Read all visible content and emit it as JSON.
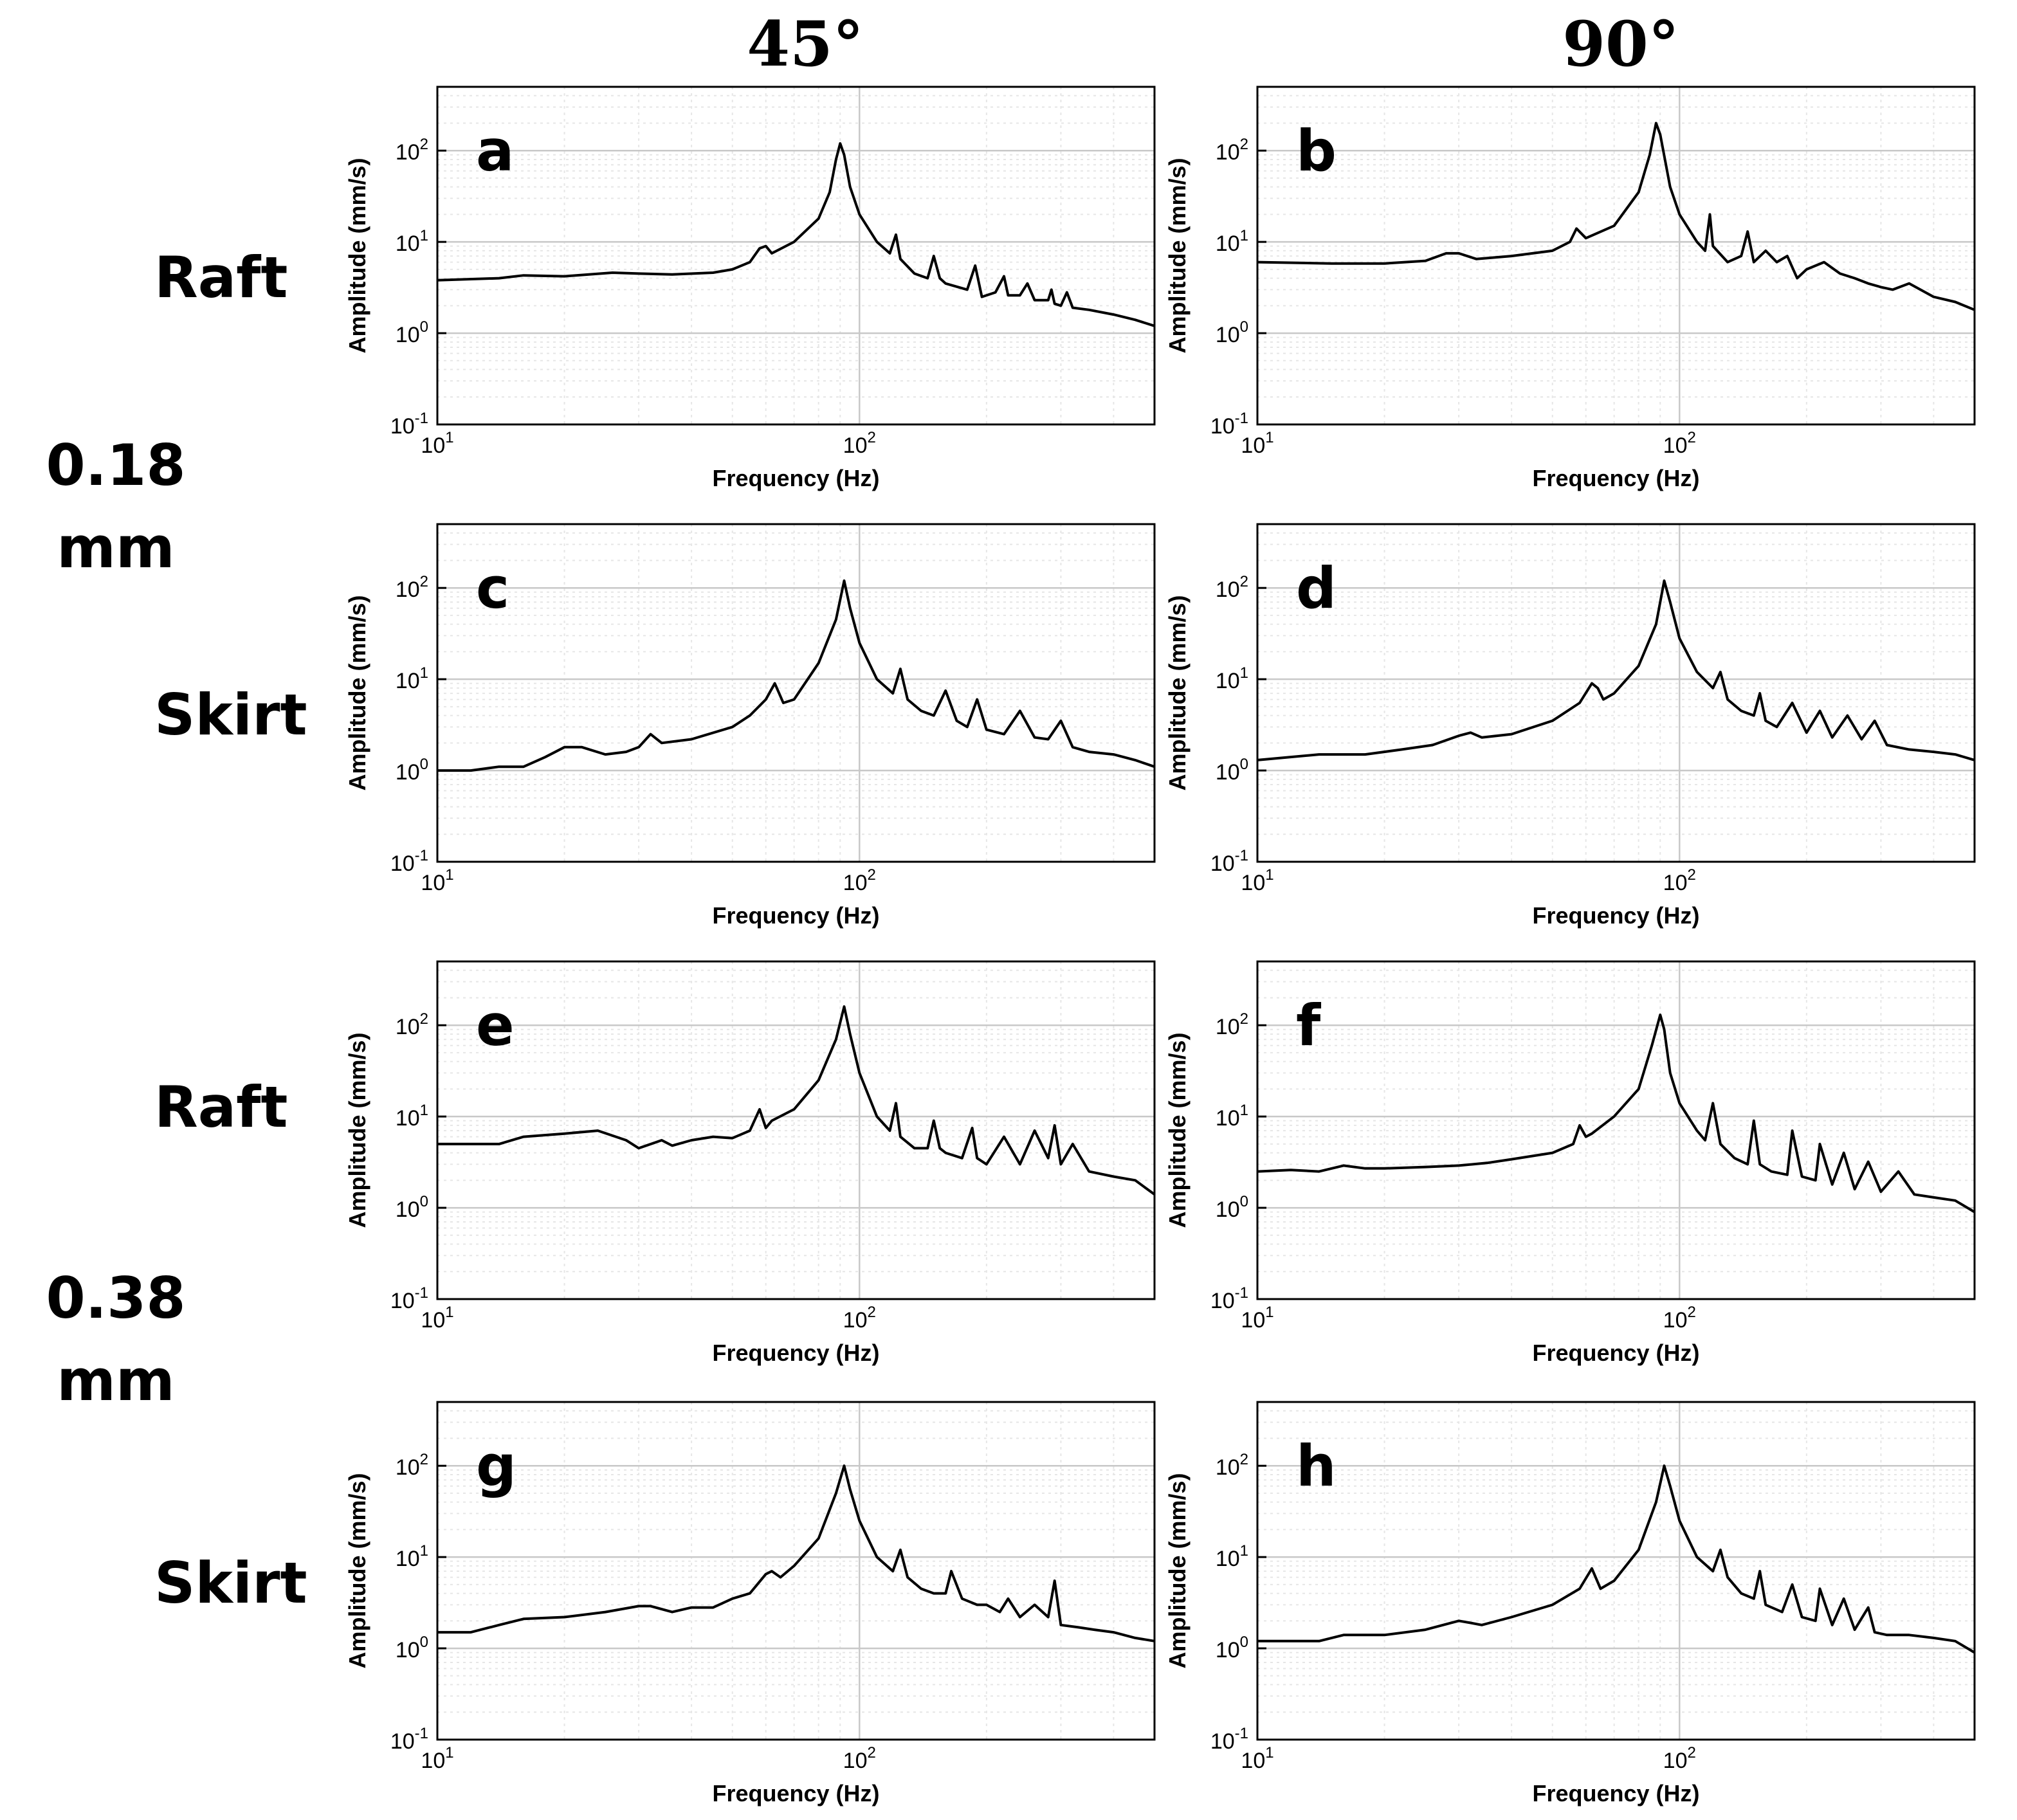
{
  "columns": [
    "45°",
    "90°"
  ],
  "rows": [
    "Raft",
    "Skirt",
    "Raft",
    "Skirt"
  ],
  "groups": [
    {
      "line1": "0.18",
      "line2": "mm"
    },
    {
      "line1": "0.38",
      "line2": "mm"
    }
  ],
  "colors": {
    "line": "#000000",
    "grid_major": "#c8c8c8",
    "grid_minor": "#e6e6e6",
    "frame": "#000000"
  },
  "chart_data": [
    {
      "panel": "a",
      "type": "line",
      "xlabel": "Frequency (Hz)",
      "ylabel": "Amplitude (mm/s)",
      "xscale": "log",
      "yscale": "log",
      "xlim": [
        10,
        500
      ],
      "ylim": [
        0.1,
        500
      ],
      "grid": true,
      "x_ticks": [
        "10^1",
        "10^2"
      ],
      "y_ticks": [
        "10^-1",
        "10^0",
        "10^1",
        "10^2"
      ],
      "x": [
        10,
        14,
        16,
        20,
        26,
        30,
        36,
        45,
        50,
        55,
        58,
        60,
        62,
        70,
        80,
        85,
        88,
        90,
        92,
        95,
        100,
        110,
        118,
        122,
        125,
        135,
        145,
        150,
        155,
        160,
        180,
        188,
        195,
        210,
        220,
        225,
        240,
        250,
        260,
        280,
        285,
        290,
        300,
        310,
        320,
        350,
        400,
        450,
        500
      ],
      "y": [
        3.8,
        4.0,
        4.3,
        4.2,
        4.6,
        4.5,
        4.4,
        4.6,
        5.0,
        6.0,
        8.5,
        9.0,
        7.5,
        10,
        18,
        35,
        80,
        120,
        90,
        40,
        20,
        10,
        7.5,
        12,
        6.5,
        4.5,
        4.0,
        7.0,
        4.0,
        3.5,
        3.0,
        5.5,
        2.5,
        2.8,
        4.2,
        2.6,
        2.6,
        3.5,
        2.3,
        2.3,
        3.0,
        2.1,
        2.0,
        2.8,
        1.9,
        1.8,
        1.6,
        1.4,
        1.2
      ]
    },
    {
      "panel": "b",
      "type": "line",
      "xlabel": "Frequency (Hz)",
      "ylabel": "Amplitude (mm/s)",
      "xscale": "log",
      "yscale": "log",
      "xlim": [
        10,
        500
      ],
      "ylim": [
        0.1,
        500
      ],
      "grid": true,
      "x_ticks": [
        "10^1",
        "10^2"
      ],
      "y_ticks": [
        "10^-1",
        "10^0",
        "10^1",
        "10^2"
      ],
      "x": [
        10,
        15,
        20,
        25,
        28,
        30,
        33,
        40,
        50,
        55,
        57,
        60,
        70,
        80,
        85,
        88,
        90,
        95,
        100,
        110,
        115,
        118,
        120,
        130,
        140,
        145,
        150,
        160,
        170,
        180,
        190,
        200,
        220,
        240,
        260,
        280,
        300,
        320,
        350,
        400,
        450,
        500
      ],
      "y": [
        6,
        5.8,
        5.8,
        6.2,
        7.5,
        7.5,
        6.5,
        7,
        8,
        10,
        14,
        11,
        15,
        35,
        90,
        200,
        150,
        40,
        20,
        10,
        8,
        20,
        9,
        6,
        7,
        13,
        6,
        8,
        6,
        7,
        4,
        5,
        6,
        4.5,
        4,
        3.5,
        3.2,
        3,
        3.5,
        2.5,
        2.2,
        1.8
      ]
    },
    {
      "panel": "c",
      "type": "line",
      "xlabel": "Frequency (Hz)",
      "ylabel": "Amplitude (mm/s)",
      "xscale": "log",
      "yscale": "log",
      "xlim": [
        10,
        500
      ],
      "ylim": [
        0.1,
        500
      ],
      "grid": true,
      "x_ticks": [
        "10^1",
        "10^2"
      ],
      "y_ticks": [
        "10^-1",
        "10^0",
        "10^1",
        "10^2"
      ],
      "x": [
        10,
        12,
        14,
        16,
        18,
        20,
        22,
        25,
        28,
        30,
        32,
        34,
        40,
        50,
        55,
        60,
        63,
        66,
        70,
        80,
        88,
        92,
        95,
        100,
        110,
        120,
        125,
        130,
        140,
        150,
        160,
        170,
        180,
        190,
        200,
        220,
        240,
        260,
        280,
        300,
        320,
        350,
        400,
        450,
        500
      ],
      "y": [
        1.0,
        1.0,
        1.1,
        1.1,
        1.4,
        1.8,
        1.8,
        1.5,
        1.6,
        1.8,
        2.5,
        2.0,
        2.2,
        3.0,
        4.0,
        6.0,
        9.0,
        5.5,
        6.0,
        15,
        45,
        120,
        60,
        25,
        10,
        7,
        13,
        6,
        4.5,
        4.0,
        7.5,
        3.5,
        3.0,
        6.0,
        2.8,
        2.5,
        4.5,
        2.3,
        2.2,
        3.5,
        1.8,
        1.6,
        1.5,
        1.3,
        1.1
      ]
    },
    {
      "panel": "d",
      "type": "line",
      "xlabel": "Frequency (Hz)",
      "ylabel": "Amplitude (mm/s)",
      "xscale": "log",
      "yscale": "log",
      "xlim": [
        10,
        500
      ],
      "ylim": [
        0.1,
        500
      ],
      "grid": true,
      "x_ticks": [
        "10^1",
        "10^2"
      ],
      "y_ticks": [
        "10^-1",
        "10^0",
        "10^1",
        "10^2"
      ],
      "x": [
        10,
        14,
        18,
        22,
        26,
        30,
        32,
        34,
        40,
        50,
        58,
        62,
        64,
        66,
        70,
        80,
        88,
        92,
        95,
        100,
        110,
        120,
        125,
        130,
        140,
        150,
        155,
        160,
        170,
        185,
        200,
        215,
        230,
        250,
        270,
        290,
        310,
        350,
        400,
        450,
        500
      ],
      "y": [
        1.3,
        1.5,
        1.5,
        1.7,
        1.9,
        2.4,
        2.6,
        2.3,
        2.5,
        3.5,
        5.5,
        9.0,
        8.0,
        6.0,
        7.0,
        14,
        40,
        120,
        70,
        28,
        12,
        8,
        12,
        6,
        4.5,
        4.0,
        7.0,
        3.5,
        3.0,
        5.5,
        2.6,
        4.5,
        2.3,
        4.0,
        2.2,
        3.5,
        1.9,
        1.7,
        1.6,
        1.5,
        1.3
      ]
    },
    {
      "panel": "e",
      "type": "line",
      "xlabel": "Frequency (Hz)",
      "ylabel": "Amplitude (mm/s)",
      "xscale": "log",
      "yscale": "log",
      "xlim": [
        10,
        500
      ],
      "ylim": [
        0.1,
        500
      ],
      "grid": true,
      "x_ticks": [
        "10^1",
        "10^2"
      ],
      "y_ticks": [
        "10^-1",
        "10^0",
        "10^1",
        "10^2"
      ],
      "x": [
        10,
        14,
        16,
        20,
        24,
        28,
        30,
        34,
        36,
        40,
        45,
        50,
        55,
        58,
        60,
        62,
        70,
        80,
        88,
        92,
        95,
        100,
        110,
        118,
        122,
        125,
        135,
        145,
        150,
        155,
        160,
        175,
        185,
        190,
        200,
        220,
        240,
        260,
        280,
        290,
        300,
        320,
        350,
        400,
        450,
        500
      ],
      "y": [
        5.0,
        5.0,
        6.0,
        6.5,
        7.0,
        5.5,
        4.5,
        5.5,
        4.8,
        5.5,
        6.0,
        5.8,
        7.0,
        12,
        7.5,
        9.0,
        12,
        25,
        70,
        160,
        80,
        30,
        10,
        7,
        14,
        6,
        4.5,
        4.5,
        9,
        4.5,
        4,
        3.5,
        7.5,
        3.5,
        3,
        6,
        3,
        7,
        3.5,
        8,
        3,
        5,
        2.5,
        2.2,
        2.0,
        1.4
      ]
    },
    {
      "panel": "f",
      "type": "line",
      "xlabel": "Frequency (Hz)",
      "ylabel": "Amplitude (mm/s)",
      "xscale": "log",
      "yscale": "log",
      "xlim": [
        10,
        500
      ],
      "ylim": [
        0.1,
        500
      ],
      "grid": true,
      "x_ticks": [
        "10^1",
        "10^2"
      ],
      "y_ticks": [
        "10^-1",
        "10^0",
        "10^1",
        "10^2"
      ],
      "x": [
        10,
        12,
        14,
        16,
        18,
        20,
        25,
        30,
        35,
        40,
        50,
        56,
        58,
        60,
        62,
        70,
        80,
        86,
        90,
        92,
        95,
        100,
        110,
        115,
        120,
        125,
        135,
        145,
        150,
        155,
        165,
        180,
        185,
        195,
        210,
        215,
        230,
        245,
        260,
        280,
        300,
        330,
        360,
        400,
        450,
        500
      ],
      "y": [
        2.5,
        2.6,
        2.5,
        2.9,
        2.7,
        2.7,
        2.8,
        2.9,
        3.1,
        3.4,
        4.0,
        5.0,
        8.0,
        6.0,
        6.5,
        10,
        20,
        60,
        130,
        90,
        30,
        14,
        7,
        5.5,
        14,
        5,
        3.5,
        3.0,
        9,
        3,
        2.5,
        2.3,
        7,
        2.2,
        2,
        5,
        1.8,
        4,
        1.6,
        3.2,
        1.5,
        2.5,
        1.4,
        1.3,
        1.2,
        0.9
      ]
    },
    {
      "panel": "g",
      "type": "line",
      "xlabel": "Frequency (Hz)",
      "ylabel": "Amplitude (mm/s)",
      "xscale": "log",
      "yscale": "log",
      "xlim": [
        10,
        500
      ],
      "ylim": [
        0.1,
        500
      ],
      "grid": true,
      "x_ticks": [
        "10^1",
        "10^2"
      ],
      "y_ticks": [
        "10^-1",
        "10^0",
        "10^1",
        "10^2"
      ],
      "x": [
        10,
        12,
        14,
        16,
        20,
        25,
        30,
        32,
        36,
        40,
        45,
        50,
        55,
        60,
        62,
        65,
        70,
        80,
        88,
        92,
        95,
        100,
        110,
        120,
        125,
        130,
        140,
        150,
        160,
        165,
        175,
        190,
        200,
        215,
        225,
        240,
        260,
        280,
        290,
        300,
        330,
        360,
        400,
        450,
        500
      ],
      "y": [
        1.5,
        1.5,
        1.8,
        2.1,
        2.2,
        2.5,
        2.9,
        2.9,
        2.5,
        2.8,
        2.8,
        3.5,
        4.0,
        6.5,
        7.0,
        6.0,
        8.0,
        16,
        50,
        100,
        55,
        25,
        10,
        7,
        12,
        6,
        4.5,
        4.0,
        4.0,
        7.0,
        3.5,
        3.0,
        3.0,
        2.5,
        3.5,
        2.2,
        3.0,
        2.2,
        5.5,
        1.8,
        1.7,
        1.6,
        1.5,
        1.3,
        1.2
      ]
    },
    {
      "panel": "h",
      "type": "line",
      "xlabel": "Frequency (Hz)",
      "ylabel": "Amplitude (mm/s)",
      "xscale": "log",
      "yscale": "log",
      "xlim": [
        10,
        500
      ],
      "ylim": [
        0.1,
        500
      ],
      "grid": true,
      "x_ticks": [
        "10^1",
        "10^2"
      ],
      "y_ticks": [
        "10^-1",
        "10^0",
        "10^1",
        "10^2"
      ],
      "x": [
        10,
        12,
        14,
        16,
        20,
        25,
        30,
        32,
        34,
        40,
        50,
        58,
        62,
        65,
        70,
        80,
        88,
        92,
        95,
        100,
        110,
        120,
        125,
        130,
        140,
        150,
        155,
        160,
        175,
        185,
        195,
        210,
        215,
        230,
        245,
        260,
        280,
        290,
        310,
        350,
        400,
        450,
        500
      ],
      "y": [
        1.2,
        1.2,
        1.2,
        1.4,
        1.4,
        1.6,
        2.0,
        1.9,
        1.8,
        2.2,
        3.0,
        4.5,
        7.5,
        4.5,
        5.5,
        12,
        40,
        100,
        60,
        25,
        10,
        7,
        12,
        6,
        4.0,
        3.5,
        7.0,
        3.0,
        2.5,
        5.0,
        2.2,
        2.0,
        4.5,
        1.8,
        3.5,
        1.6,
        2.8,
        1.5,
        1.4,
        1.4,
        1.3,
        1.2,
        0.9
      ]
    }
  ]
}
